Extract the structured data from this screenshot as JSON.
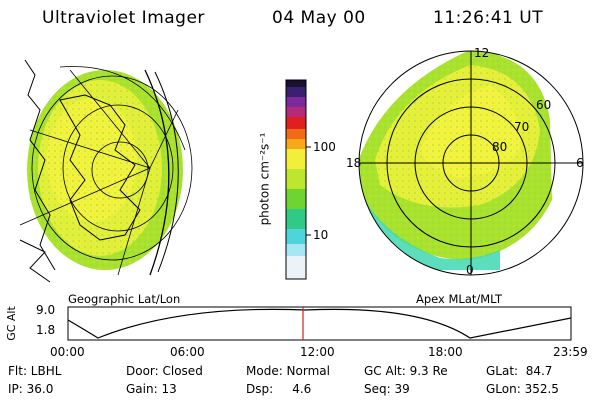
{
  "header": {
    "title": "Ultraviolet Imager",
    "date": "04 May 00",
    "time": "11:26:41 UT"
  },
  "left_panel": {
    "label": "Geographic Lat/Lon"
  },
  "right_panel": {
    "label": "Apex MLat/MLT",
    "mlt_labels": [
      "12",
      "18",
      "6",
      "0"
    ],
    "lat_labels": [
      "60",
      "70",
      "80"
    ]
  },
  "colorbar": {
    "unit_label": "photon cm⁻²s⁻¹",
    "tick_labels": [
      "100",
      "10"
    ]
  },
  "orbit_plot": {
    "y_axis_label": "GC Alt",
    "y_ticks": [
      "9.0",
      "1.8"
    ],
    "time_ticks": [
      "00:00",
      "06:00",
      "12:00",
      "18:00",
      "23:59"
    ],
    "current_time_marker": "11:26"
  },
  "info": {
    "filter": "Flt: LBHL",
    "ip": "IP: 36.0",
    "door": "Door: Closed",
    "gain": "Gain: 13",
    "mode": "Mode: Normal",
    "dsp": "Dsp:     4.6",
    "gc_alt": "GC Alt: 9.3 Re",
    "seq": "Seq: 39",
    "glat": "GLat:  84.7",
    "glon": "GLon: 352.5"
  },
  "colors": {
    "bright": "#f2f23a",
    "mid": "#a8e12e",
    "low": "#3fd7b3",
    "edge": "#7ad9e8",
    "marker": "#d42020"
  }
}
